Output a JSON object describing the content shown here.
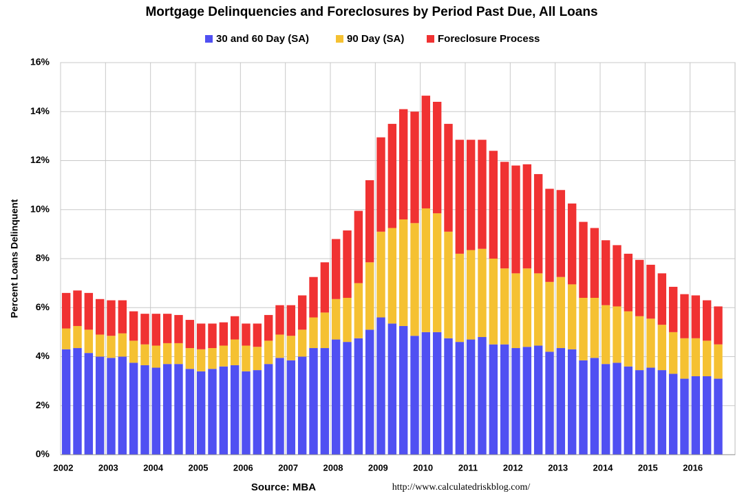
{
  "chart_data": {
    "type": "stacked_bar",
    "title": "Mortgage Delinquencies and Foreclosures by Period Past Due, All Loans",
    "y_label": "Percent Loans Delinquent",
    "source": "Source: MBA",
    "url": "http://www.calculatedriskblog.com/",
    "categories": [
      "2002",
      null,
      null,
      null,
      "2003",
      null,
      null,
      null,
      "2004",
      null,
      null,
      null,
      "2005",
      null,
      null,
      null,
      "2006",
      null,
      null,
      null,
      "2007",
      null,
      null,
      null,
      "2008",
      null,
      null,
      null,
      "2009",
      null,
      null,
      null,
      "2010",
      null,
      null,
      null,
      "2011",
      null,
      null,
      null,
      "2012",
      null,
      null,
      null,
      "2013",
      null,
      null,
      null,
      "2014",
      null,
      null,
      null,
      "2015",
      null,
      null,
      null,
      "2016",
      null,
      null
    ],
    "series": [
      {
        "name": "30 and 60 Day (SA)",
        "color": "#5050f2",
        "values": [
          4.3,
          4.35,
          4.15,
          4.0,
          3.95,
          4.0,
          3.75,
          3.65,
          3.55,
          3.7,
          3.7,
          3.5,
          3.4,
          3.5,
          3.6,
          3.65,
          3.4,
          3.45,
          3.7,
          3.95,
          3.85,
          4.0,
          4.35,
          4.35,
          4.7,
          4.6,
          4.75,
          5.1,
          5.6,
          5.35,
          5.25,
          4.85,
          5.0,
          5.0,
          4.75,
          4.6,
          4.7,
          4.8,
          4.5,
          4.5,
          4.35,
          4.4,
          4.45,
          4.2,
          4.35,
          4.3,
          3.85,
          3.95,
          3.7,
          3.75,
          3.6,
          3.45,
          3.55,
          3.45,
          3.3,
          3.1,
          3.2,
          3.2,
          3.1
        ]
      },
      {
        "name": "90 Day (SA)",
        "color": "#f5c132",
        "values": [
          0.85,
          0.9,
          0.95,
          0.9,
          0.9,
          0.95,
          0.9,
          0.85,
          0.9,
          0.85,
          0.85,
          0.85,
          0.9,
          0.85,
          0.85,
          1.05,
          1.05,
          0.95,
          0.95,
          0.95,
          1.0,
          1.1,
          1.25,
          1.45,
          1.65,
          1.8,
          2.25,
          2.75,
          3.5,
          3.9,
          4.35,
          4.6,
          5.05,
          4.85,
          4.35,
          3.6,
          3.65,
          3.6,
          3.5,
          3.1,
          3.05,
          3.2,
          2.95,
          2.85,
          2.9,
          2.65,
          2.55,
          2.45,
          2.4,
          2.3,
          2.25,
          2.2,
          2.0,
          1.85,
          1.7,
          1.65,
          1.55,
          1.45,
          1.4
        ]
      },
      {
        "name": "Foreclosure Process",
        "color": "#f03232",
        "values": [
          1.45,
          1.45,
          1.5,
          1.45,
          1.45,
          1.35,
          1.2,
          1.25,
          1.3,
          1.2,
          1.15,
          1.15,
          1.05,
          1.0,
          0.95,
          0.95,
          0.9,
          0.95,
          1.05,
          1.2,
          1.25,
          1.4,
          1.65,
          2.05,
          2.45,
          2.75,
          2.95,
          3.35,
          3.85,
          4.25,
          4.5,
          4.55,
          4.6,
          4.55,
          4.4,
          4.65,
          4.5,
          4.45,
          4.4,
          4.35,
          4.4,
          4.25,
          4.05,
          3.8,
          3.55,
          3.3,
          3.1,
          2.85,
          2.65,
          2.5,
          2.35,
          2.3,
          2.2,
          2.1,
          1.85,
          1.8,
          1.75,
          1.65,
          1.55
        ]
      }
    ],
    "ylim": [
      0,
      16
    ],
    "yticks": [
      {
        "value": 0,
        "label": "0%"
      },
      {
        "value": 2,
        "label": "2%"
      },
      {
        "value": 4,
        "label": "4%"
      },
      {
        "value": 6,
        "label": "6%"
      },
      {
        "value": 8,
        "label": "8%"
      },
      {
        "value": 10,
        "label": "10%"
      },
      {
        "value": 12,
        "label": "12%"
      },
      {
        "value": 14,
        "label": "14%"
      },
      {
        "value": 16,
        "label": "16%"
      }
    ],
    "grid": true
  }
}
